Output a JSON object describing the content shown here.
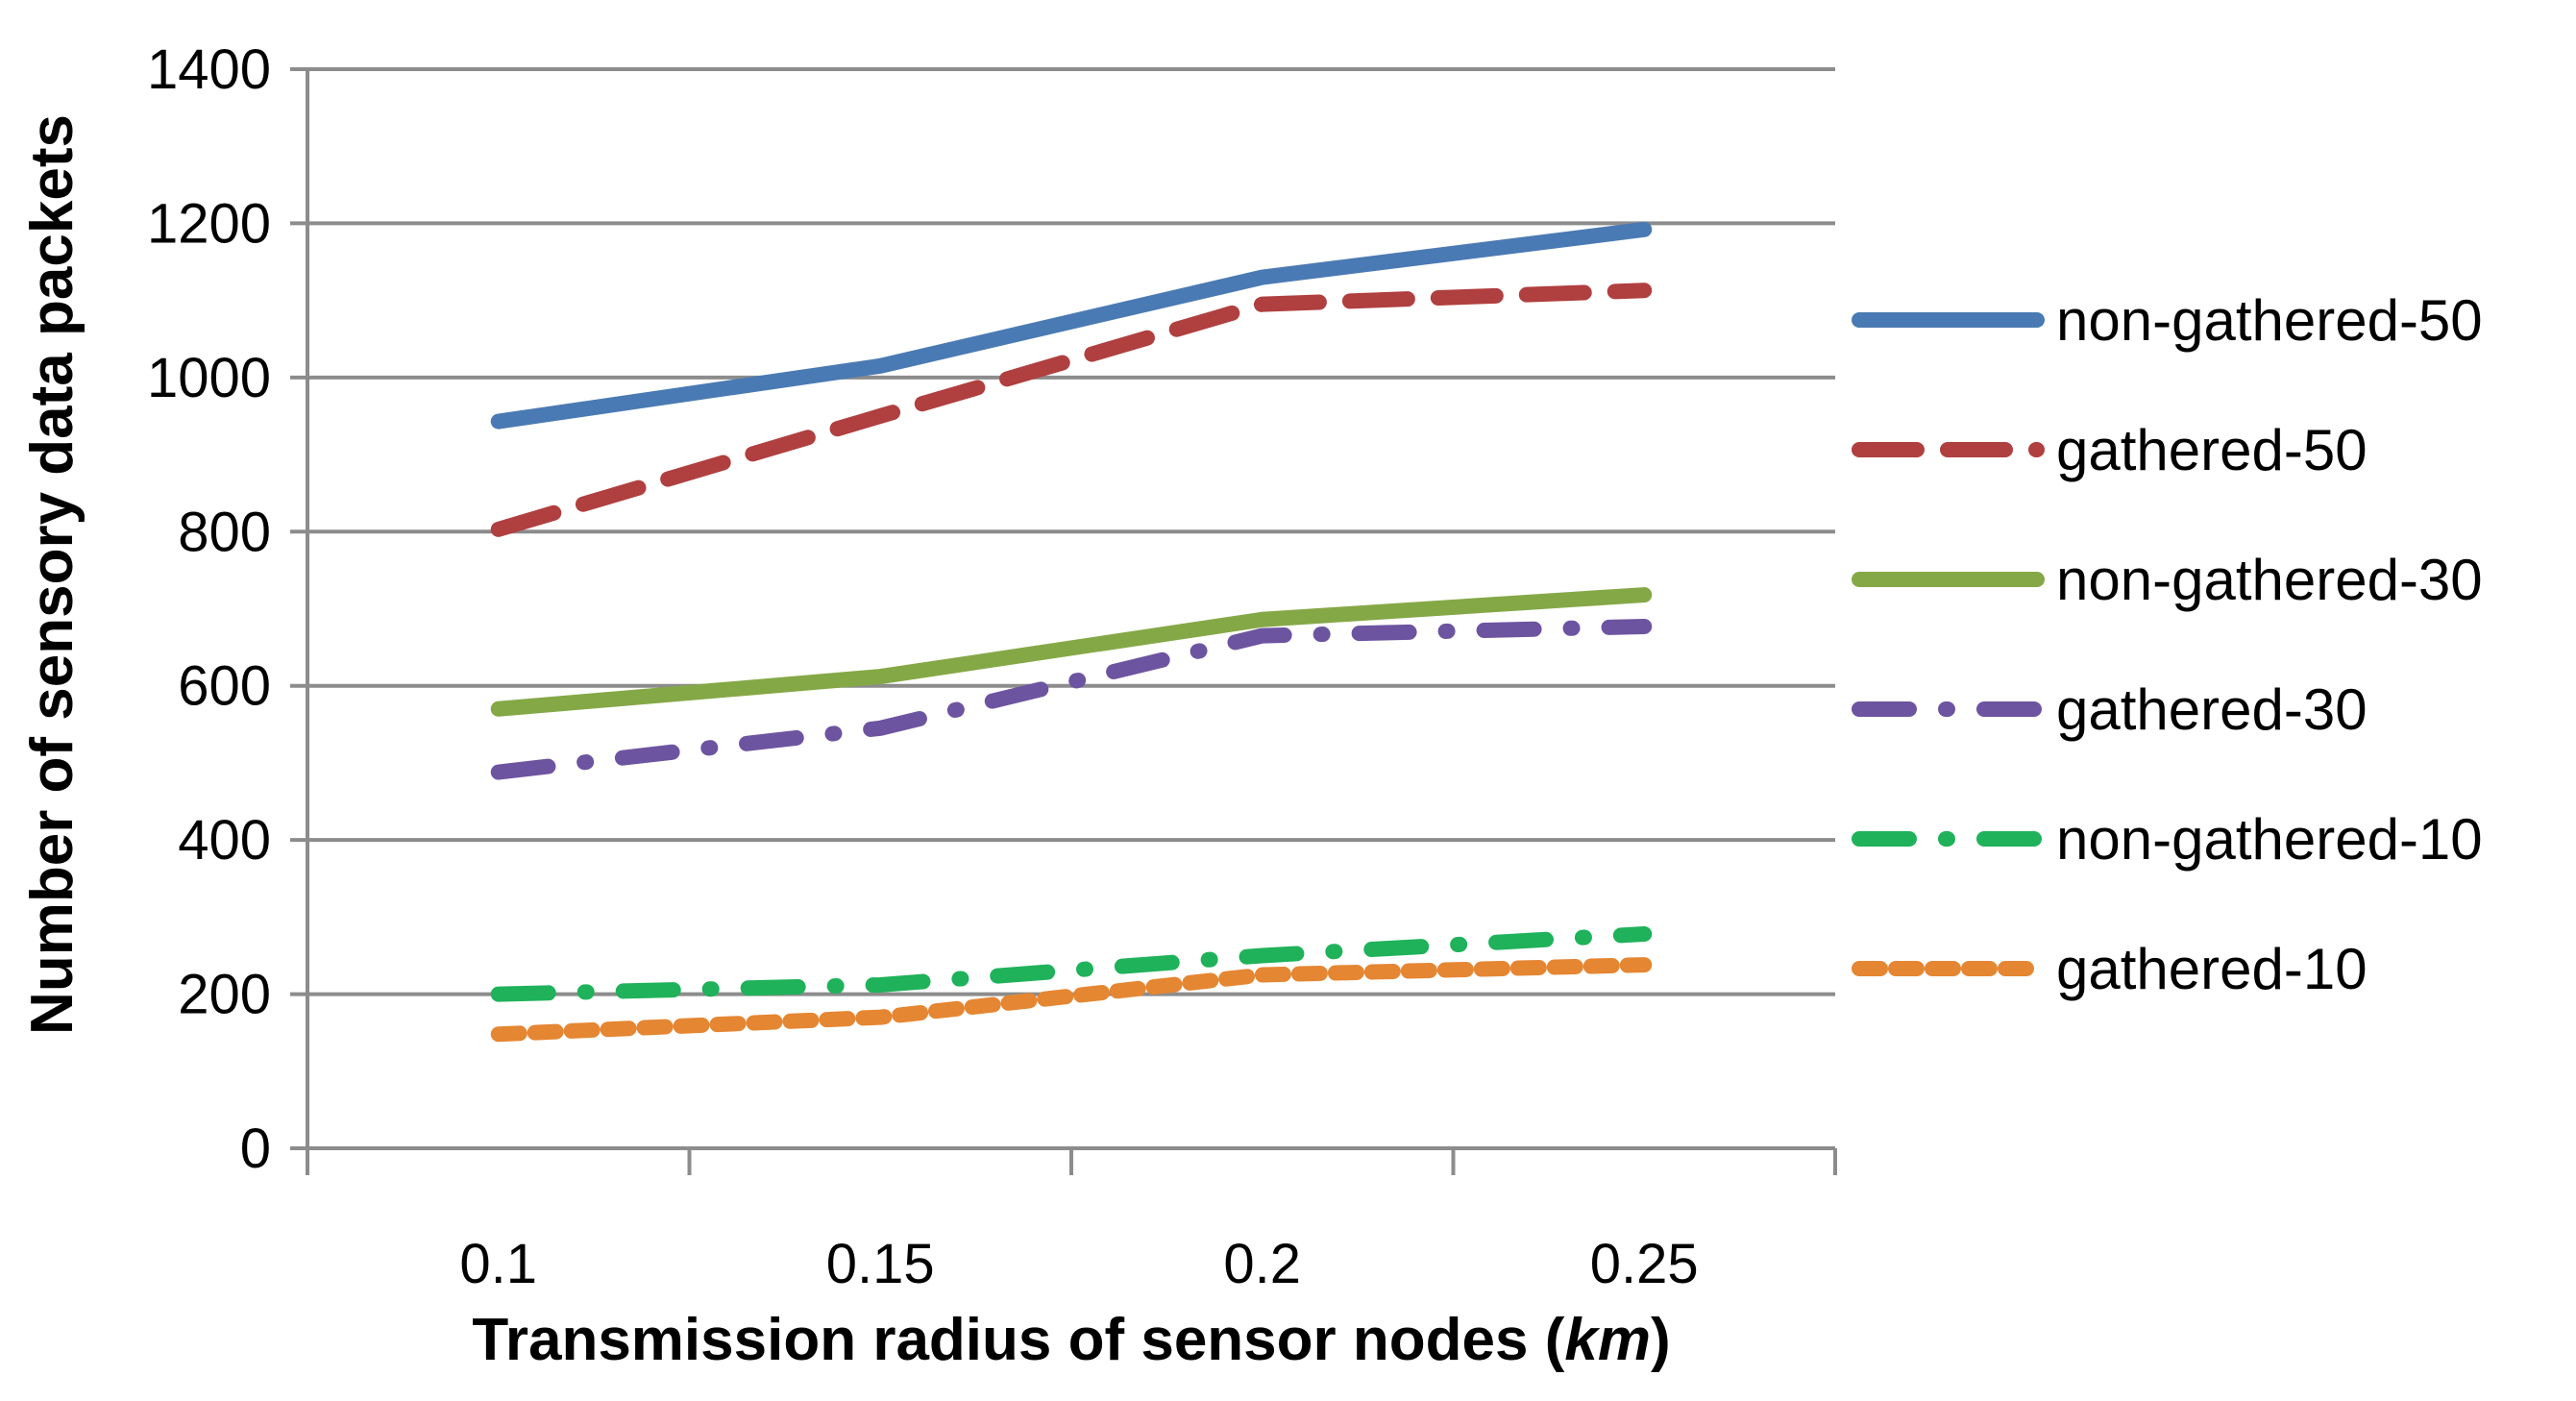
{
  "chart_data": {
    "type": "line",
    "categories": [
      "0.1",
      "0.15",
      "0.2",
      "0.25"
    ],
    "ylim": [
      0,
      1400
    ],
    "yticks": [
      "0",
      "200",
      "400",
      "600",
      "800",
      "1000",
      "1200",
      "1400"
    ],
    "ylabel": "Number of sensory data packets",
    "xlabel_prefix": "Transmission radius of sensor nodes (",
    "xlabel_unit": "km",
    "xlabel_suffix": ")",
    "grid": true,
    "legend_position": "right",
    "series": [
      {
        "name": "non-gathered-50",
        "values": [
          943,
          1015,
          1130,
          1192
        ],
        "color": "#4a7ab3",
        "style": "solid"
      },
      {
        "name": "gathered-50",
        "values": [
          803,
          950,
          1095,
          1113
        ],
        "color": "#b03f3f",
        "style": "dash"
      },
      {
        "name": "non-gathered-30",
        "values": [
          570,
          612,
          686,
          718
        ],
        "color": "#85a846",
        "style": "solid"
      },
      {
        "name": "gathered-30",
        "values": [
          488,
          545,
          665,
          677
        ],
        "color": "#6d54a0",
        "style": "dashdot"
      },
      {
        "name": "non-gathered-10",
        "values": [
          200,
          212,
          250,
          278
        ],
        "color": "#1fb25a",
        "style": "dashdot"
      },
      {
        "name": "gathered-10",
        "values": [
          148,
          170,
          225,
          238
        ],
        "color": "#e58632",
        "style": "shortdash"
      }
    ]
  }
}
